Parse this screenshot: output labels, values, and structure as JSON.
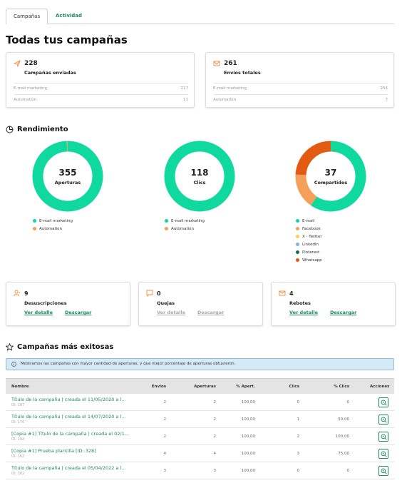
{
  "tabs": [
    {
      "label": "Campañas",
      "active": true
    },
    {
      "label": "Actividad",
      "active": false
    }
  ],
  "page_title": "Todas tus campañas",
  "stats": [
    {
      "value": "228",
      "label": "Campañas enviadas",
      "rows": [
        {
          "label": "E-mail marketing",
          "value": "217"
        },
        {
          "label": "Automation",
          "value": "11"
        }
      ]
    },
    {
      "value": "261",
      "label": "Envíos totales",
      "rows": [
        {
          "label": "E-mail marketing",
          "value": "254"
        },
        {
          "label": "Automation",
          "value": "7"
        }
      ]
    }
  ],
  "performance": {
    "title": "Rendimiento",
    "charts": [
      {
        "value": "355",
        "label": "Aperturas",
        "segments": [
          {
            "name": "E-mail marketing",
            "value": 353,
            "color": "#10d9a0"
          },
          {
            "name": "Automation",
            "value": 2,
            "color": "#f5a05a"
          }
        ]
      },
      {
        "value": "118",
        "label": "Clics",
        "segments": [
          {
            "name": "E-mail marketing",
            "value": 118,
            "color": "#10d9a0"
          },
          {
            "name": "Automation",
            "value": 0,
            "color": "#f5a05a"
          }
        ]
      },
      {
        "value": "37",
        "label": "Compartidos",
        "segments": [
          {
            "name": "E-mail",
            "value": 22,
            "color": "#10d9a0"
          },
          {
            "name": "Facebook",
            "value": 6,
            "color": "#f5a05a"
          },
          {
            "name": "X - Twitter",
            "value": 0,
            "color": "#f7d24a"
          },
          {
            "name": "LinkedIn",
            "value": 0,
            "color": "#7fb5d8"
          },
          {
            "name": "Pinterest",
            "value": 0,
            "color": "#1a6b48"
          },
          {
            "name": "Whatsapp",
            "value": 9,
            "color": "#e35a12"
          }
        ]
      }
    ]
  },
  "small_cards": [
    {
      "value": "9",
      "label": "Desuscripciones",
      "link1": "Ver detalle",
      "link2": "Descargar",
      "enabled": true
    },
    {
      "value": "0",
      "label": "Quejas",
      "link1": "Ver detalle",
      "link2": "Descargar",
      "enabled": false
    },
    {
      "value": "4",
      "label": "Rebotes",
      "link1": "Ver detalle",
      "link2": "Descargar",
      "enabled": true
    }
  ],
  "top_campaigns": {
    "title": "Campañas más exitosas",
    "info": "Mostramos las campañas con mayor cantidad de aperturas, y que mejor porcentaje de aperturas obtuvieron.",
    "columns": [
      "Nombre",
      "Envíos",
      "Aperturas",
      "% Apert.",
      "Clics",
      "% Clics",
      "Acciones"
    ],
    "rows": [
      {
        "name": "Título de la campaña | creada el 11/05/2020 a l...",
        "id": "ID: 187",
        "envios": "2",
        "aperturas": "2",
        "pct_apert": "100,00",
        "clics": "0",
        "pct_clics": "0"
      },
      {
        "name": "Título de la campaña | creada el 14/07/2020 a l...",
        "id": "ID: 176",
        "envios": "2",
        "aperturas": "2",
        "pct_apert": "100,00",
        "clics": "1",
        "pct_clics": "50,00"
      },
      {
        "name": "[Copia #1] Título de la campaña | creada el 02/1...",
        "id": "ID: 194",
        "envios": "2",
        "aperturas": "2",
        "pct_apert": "100,00",
        "clics": "2",
        "pct_clics": "100,00"
      },
      {
        "name": "[Copia #1] Prueba plantilla [ID: 328]",
        "id": "ID: 362",
        "envios": "4",
        "aperturas": "4",
        "pct_apert": "100,00",
        "clics": "3",
        "pct_clics": "75,00"
      },
      {
        "name": "Título de la campaña | creada el 05/04/2022 a l...",
        "id": "ID: 382",
        "envios": "3",
        "aperturas": "3",
        "pct_apert": "100,00",
        "clics": "0",
        "pct_clics": "0"
      }
    ]
  }
}
